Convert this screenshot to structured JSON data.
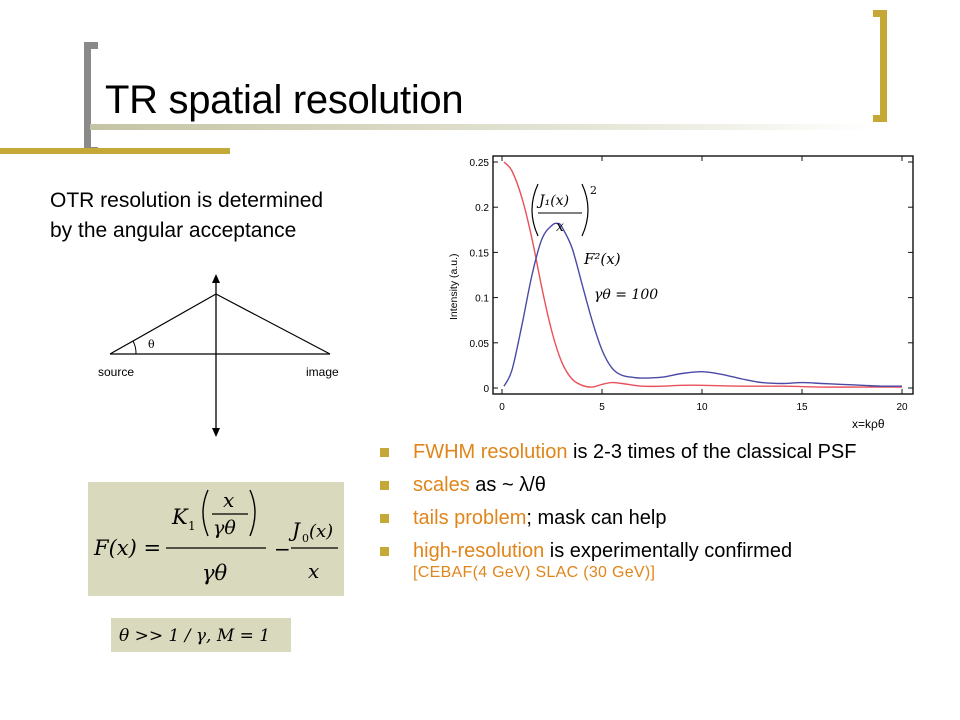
{
  "slide": {
    "title": "TR spatial resolution",
    "subtitle_lines": [
      "OTR resolution is determined",
      "by the angular acceptance"
    ],
    "accent_colors": {
      "gold": "#c4a838",
      "olive_light": "#d9d9bd",
      "highlight": "#e0851a"
    }
  },
  "optics_diagram": {
    "source_label": "source",
    "image_label": "image",
    "angle_label": "θ"
  },
  "formula1": {
    "lhs": "F(x) =",
    "k_symbol": "K",
    "k_sub": "1",
    "k_arg_num": "x",
    "k_arg_den": "γθ",
    "den": "γθ",
    "minus": "−",
    "j_symbol": "J",
    "j_sub": "0",
    "j_arg": "(x)",
    "j_den": "x"
  },
  "formula2": {
    "text": "θ >> 1 / γ, M = 1"
  },
  "chart_data": {
    "type": "line",
    "ylabel": "Intensity (a.u.)",
    "xlabel": "x=kρθ",
    "xlim": [
      0,
      20
    ],
    "ylim": [
      0,
      0.25
    ],
    "xticks": [
      "0",
      "5",
      "10",
      "15",
      "20"
    ],
    "yticks": [
      "0",
      "0.05",
      "0.1",
      "0.15",
      "0.2",
      "0.25"
    ],
    "annotations": {
      "j1_label": "J₁(x)",
      "j1_den": "x",
      "j1_power": "2",
      "f2_label": "F²(x)",
      "gamma_label": "γθ = 100"
    },
    "series": [
      {
        "color": "#e8505a",
        "x": [
          0.1,
          0.5,
          1.0,
          1.5,
          2.0,
          2.5,
          3.0,
          3.5,
          4.0,
          4.5,
          5.0,
          5.5,
          6.0,
          7.0,
          8.0,
          9.0,
          10.0,
          12.0,
          14.0,
          16.0,
          18.0,
          20.0
        ],
        "y": [
          0.25,
          0.24,
          0.21,
          0.165,
          0.11,
          0.062,
          0.028,
          0.01,
          0.003,
          0.001,
          0.004,
          0.006,
          0.005,
          0.002,
          0.002,
          0.003,
          0.003,
          0.002,
          0.002,
          0.001,
          0.001,
          0.001
        ]
      },
      {
        "color": "#4a4aa6",
        "x": [
          0.1,
          0.5,
          1.0,
          1.5,
          2.0,
          2.5,
          2.8,
          3.0,
          3.5,
          4.0,
          4.5,
          5.0,
          5.5,
          6.0,
          6.5,
          7.0,
          8.0,
          9.0,
          10.0,
          11.0,
          12.0,
          13.0,
          14.0,
          15.0,
          16.0,
          17.0,
          18.0,
          19.0,
          20.0
        ],
        "y": [
          0.002,
          0.02,
          0.07,
          0.125,
          0.165,
          0.18,
          0.182,
          0.178,
          0.155,
          0.115,
          0.075,
          0.042,
          0.022,
          0.014,
          0.012,
          0.011,
          0.012,
          0.016,
          0.018,
          0.015,
          0.01,
          0.006,
          0.005,
          0.006,
          0.005,
          0.004,
          0.003,
          0.002,
          0.002
        ]
      }
    ]
  },
  "bullets": [
    {
      "highlight": "FWHM resolution",
      "rest": " is 2-3 times of the classical PSF",
      "sub": ""
    },
    {
      "highlight": "scales",
      "rest": " as ~ λ/θ",
      "sub": ""
    },
    {
      "highlight": "tails problem",
      "rest": "; mask can help",
      "sub": ""
    },
    {
      "highlight": "high-resolution",
      "rest": " is experimentally confirmed",
      "sub": "[CEBAF(4 GeV) SLAC (30 GeV)]"
    }
  ]
}
